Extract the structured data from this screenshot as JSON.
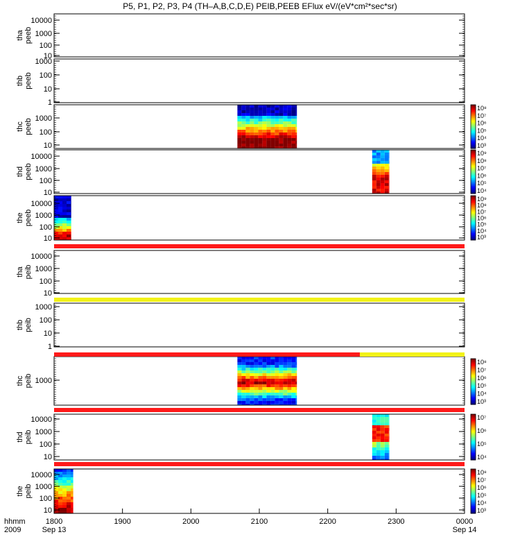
{
  "title": "P5, P1, P2, P3, P4 (TH–A,B,C,D,E) PEIB,PEEB EFlux eV/(eV*cm²*sec*sr)",
  "chart_data": {
    "type": "heatmap",
    "title": "P5, P1, P2, P3, P4 (TH–A,B,C,D,E) PEIB,PEEB EFlux eV/(eV*cm²*sec*sr)",
    "x_axis": {
      "ticks": [
        "1800",
        "1900",
        "2000",
        "2100",
        "2200",
        "2300",
        "0000"
      ],
      "tick_values_hours": [
        18,
        19,
        20,
        21,
        22,
        23,
        24
      ],
      "range_hours": [
        18,
        24
      ],
      "row_label_left_top": "hhmm",
      "row_label_left_bottom": "2009",
      "start_date_label": "Sep 13",
      "end_date_label": "Sep 14"
    },
    "panels": [
      {
        "id": "thaPeeb",
        "ylabel": [
          "tha",
          "peeb"
        ],
        "yticks": [
          "10000",
          "1000",
          "100",
          "10"
        ],
        "scale": "log",
        "blocks": []
      },
      {
        "id": "thbPeeb",
        "ylabel": [
          "thb",
          "peeb"
        ],
        "yticks": [
          "1000",
          "100",
          "10",
          "1"
        ],
        "scale": "log",
        "blocks": []
      },
      {
        "id": "thcPeeb",
        "ylabel": [
          "thc",
          "peeb"
        ],
        "yticks": [
          "1000",
          "100",
          "10"
        ],
        "scale": "log",
        "colorbar": {
          "ticks": [
            "10⁸",
            "10⁷",
            "10⁶",
            "10⁵",
            "10⁴",
            "10³"
          ]
        },
        "blocks": [
          {
            "x_start": 20.68,
            "x_end": 21.55
          }
        ]
      },
      {
        "id": "thdPeeb",
        "ylabel": [
          "thd",
          "peeb"
        ],
        "yticks": [
          "10000",
          "1000",
          "100",
          "10"
        ],
        "scale": "log",
        "colorbar": {
          "ticks": [
            "10⁹",
            "10⁸",
            "10⁷",
            "10⁶",
            "10⁵",
            "10⁴"
          ]
        },
        "blocks": [
          {
            "x_start": 22.65,
            "x_end": 22.9
          }
        ]
      },
      {
        "id": "thePeeb",
        "ylabel": [
          "the",
          "peeb"
        ],
        "yticks": [
          "10000",
          "1000",
          "100",
          "10"
        ],
        "scale": "log",
        "colorbar": {
          "ticks": [
            "10⁹",
            "10⁸",
            "10⁷",
            "10⁶",
            "10⁵",
            "10⁴",
            "10³"
          ]
        },
        "blocks": [
          {
            "x_start": 18.0,
            "x_end": 18.25
          }
        ]
      },
      {
        "id": "thaPeib",
        "ylabel": [
          "tha",
          "peib"
        ],
        "yticks": [
          "10000",
          "1000",
          "100",
          "10"
        ],
        "scale": "log",
        "blocks": []
      },
      {
        "id": "thbPeib",
        "ylabel": [
          "thb",
          "peib"
        ],
        "yticks": [
          "1000",
          "100",
          "10",
          "1"
        ],
        "scale": "log",
        "blocks": []
      },
      {
        "id": "thcPeib",
        "ylabel": [
          "thc",
          "peib"
        ],
        "yticks": [
          "1000"
        ],
        "scale": "log",
        "colorbar": {
          "ticks": [
            "10⁸",
            "10⁷",
            "10⁶",
            "10⁵",
            "10⁴",
            "10³"
          ]
        },
        "blocks": [
          {
            "x_start": 20.68,
            "x_end": 21.55
          }
        ]
      },
      {
        "id": "thdPeib",
        "ylabel": [
          "thd",
          "peib"
        ],
        "yticks": [
          "10000",
          "1000",
          "100",
          "10"
        ],
        "scale": "log",
        "colorbar": {
          "ticks": [
            "10⁷",
            "10⁶",
            "10⁵",
            "10⁴"
          ]
        },
        "blocks": [
          {
            "x_start": 22.65,
            "x_end": 22.9
          }
        ]
      },
      {
        "id": "thePeib",
        "ylabel": [
          "the",
          "peib"
        ],
        "yticks": [
          "10000",
          "1000",
          "100",
          "10"
        ],
        "scale": "log",
        "colorbar": {
          "ticks": [
            "10⁸",
            "10⁷",
            "10⁶",
            "10⁵",
            "10⁴",
            "10³"
          ]
        },
        "blocks": [
          {
            "x_start": 18.0,
            "x_end": 18.28
          }
        ]
      }
    ],
    "mode_bars": [
      {
        "after_panel": "thePeeb",
        "segments": [
          {
            "from": 18.0,
            "to": 24.0,
            "color": "#ff1a1a"
          }
        ]
      },
      {
        "after_panel": "thaPeib",
        "segments": [
          {
            "from": 18.0,
            "to": 24.0,
            "color": "#f2f218"
          }
        ]
      },
      {
        "after_panel": "thbPeib",
        "segments": [
          {
            "from": 18.0,
            "to": 22.47,
            "color": "#ff1a1a"
          },
          {
            "from": 22.47,
            "to": 24.0,
            "color": "#f2f218"
          }
        ]
      },
      {
        "after_panel": "thcPeib",
        "segments": [
          {
            "from": 18.0,
            "to": 24.0,
            "color": "#ff1a1a"
          }
        ]
      },
      {
        "after_panel": "thdPeib",
        "segments": [
          {
            "from": 18.0,
            "to": 24.0,
            "color": "#ff1a1a"
          }
        ]
      }
    ]
  }
}
